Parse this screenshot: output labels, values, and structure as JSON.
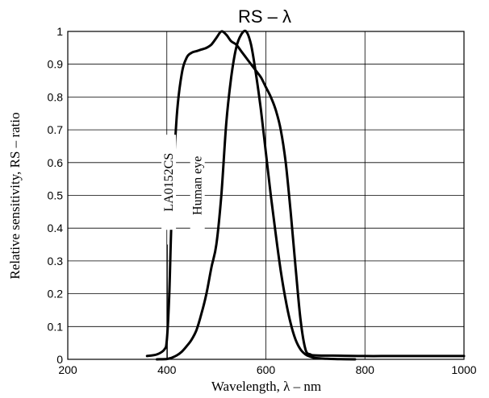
{
  "chart_data": {
    "type": "line",
    "title": "RS – λ",
    "xlabel": "Wavelength, λ – nm",
    "ylabel": "Relative sensitivity, RS – ratio",
    "xlim": [
      200,
      1000
    ],
    "ylim": [
      0,
      1
    ],
    "x_ticks": [
      "200",
      "400",
      "600",
      "800",
      "1000"
    ],
    "y_ticks": [
      "0",
      "0.1",
      "0.2",
      "0.3",
      "0.4",
      "0.5",
      "0.6",
      "0.7",
      "0.8",
      "0.9",
      "1"
    ],
    "grid": true,
    "series": [
      {
        "name": "LA0152CS",
        "x": [
          360,
          380,
          395,
          400,
          405,
          410,
          420,
          430,
          440,
          450,
          460,
          470,
          480,
          490,
          500,
          510,
          520,
          530,
          540,
          550,
          560,
          570,
          580,
          590,
          600,
          610,
          620,
          630,
          640,
          650,
          660,
          670,
          680,
          690,
          700,
          750,
          800,
          850,
          900,
          1000
        ],
        "y": [
          0.01,
          0.015,
          0.03,
          0.06,
          0.2,
          0.45,
          0.74,
          0.87,
          0.92,
          0.935,
          0.94,
          0.945,
          0.95,
          0.96,
          0.98,
          1.0,
          0.99,
          0.97,
          0.96,
          0.94,
          0.92,
          0.9,
          0.88,
          0.86,
          0.83,
          0.8,
          0.76,
          0.7,
          0.6,
          0.45,
          0.28,
          0.12,
          0.03,
          0.015,
          0.012,
          0.011,
          0.01,
          0.01,
          0.01,
          0.01
        ]
      },
      {
        "name": "Human eye",
        "x": [
          380,
          400,
          410,
          420,
          430,
          440,
          450,
          460,
          470,
          480,
          490,
          500,
          510,
          520,
          530,
          540,
          550,
          560,
          570,
          580,
          590,
          600,
          610,
          620,
          630,
          640,
          650,
          660,
          670,
          680,
          690,
          700,
          720,
          750,
          780
        ],
        "y": [
          0.0,
          0.001,
          0.005,
          0.012,
          0.023,
          0.04,
          0.06,
          0.09,
          0.14,
          0.2,
          0.28,
          0.35,
          0.5,
          0.72,
          0.86,
          0.95,
          0.99,
          1.0,
          0.96,
          0.87,
          0.76,
          0.63,
          0.5,
          0.38,
          0.27,
          0.18,
          0.11,
          0.06,
          0.03,
          0.015,
          0.008,
          0.004,
          0.002,
          0.0005,
          0.0
        ]
      }
    ],
    "annotations": [
      "LA0152CS",
      "Human eye"
    ]
  }
}
